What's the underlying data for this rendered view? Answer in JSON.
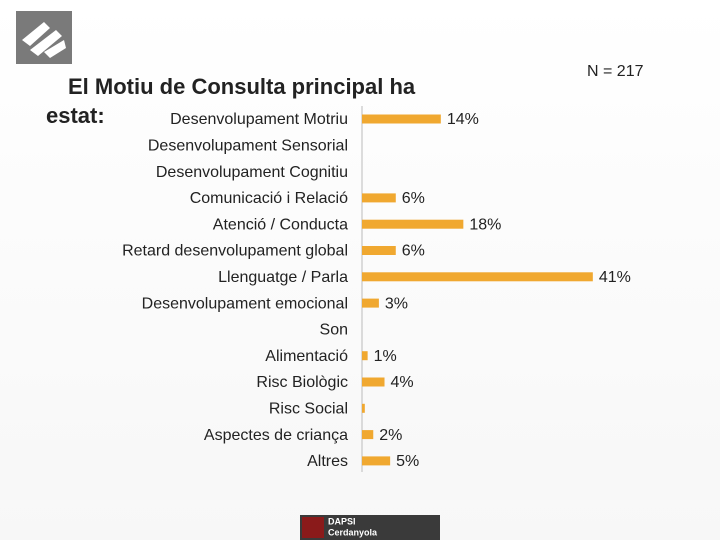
{
  "chart_data": {
    "type": "bar",
    "orientation": "horizontal",
    "title": "El Motiu de Consulta principal ha estat:",
    "annotation": "N = 217",
    "categories": [
      "Desenvolupament Motriu",
      "Desenvolupament Sensorial",
      "Desenvolupament Cognitiu",
      "Comunicació i Relació",
      "Atenció / Conducta",
      "Retard desenvolupament global",
      "Llenguatge / Parla",
      "Desenvolupament emocional",
      "Son",
      "Alimentació",
      "Risc Biològic",
      "Risc Social",
      "Aspectes de criança",
      "Altres"
    ],
    "values": [
      14,
      0,
      0,
      6,
      18,
      6,
      41,
      3,
      0,
      1,
      4,
      0.5,
      2,
      5
    ],
    "value_labels": [
      "14%",
      null,
      null,
      "6%",
      "18%",
      "6%",
      "41%",
      "3%",
      null,
      "1%",
      "4%",
      null,
      "2%",
      "5%"
    ],
    "color": "#f0a830"
  },
  "logo": {
    "line1": "DAPSI",
    "line2": "Cerdanyola"
  }
}
